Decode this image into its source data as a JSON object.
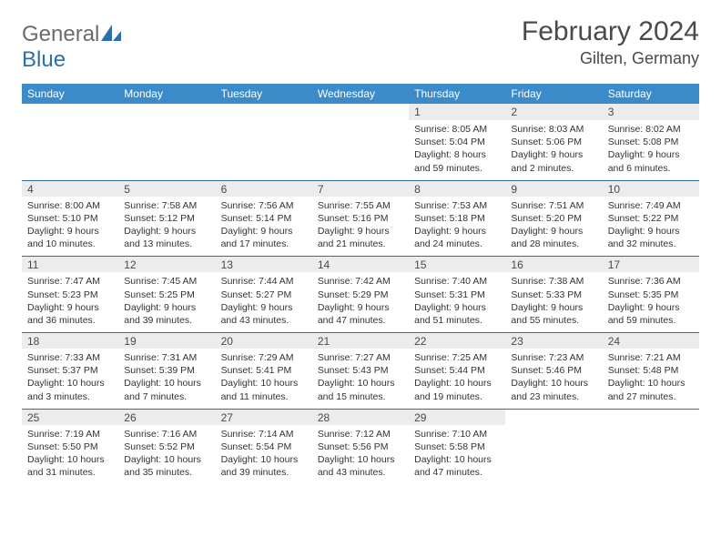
{
  "brand": {
    "left": "General",
    "right": "Blue"
  },
  "title": "February 2024",
  "location": "Gilten, Germany",
  "header_bg": "#3b8bc8",
  "daynum_bg": "#ececec",
  "rule_color": "#2f6fa7",
  "text_color": "#333333",
  "day_labels": [
    "Sunday",
    "Monday",
    "Tuesday",
    "Wednesday",
    "Thursday",
    "Friday",
    "Saturday"
  ],
  "weeks": [
    [
      null,
      null,
      null,
      null,
      {
        "n": "1",
        "sr": "8:05 AM",
        "ss": "5:04 PM",
        "dl": "8 hours and 59 minutes."
      },
      {
        "n": "2",
        "sr": "8:03 AM",
        "ss": "5:06 PM",
        "dl": "9 hours and 2 minutes."
      },
      {
        "n": "3",
        "sr": "8:02 AM",
        "ss": "5:08 PM",
        "dl": "9 hours and 6 minutes."
      }
    ],
    [
      {
        "n": "4",
        "sr": "8:00 AM",
        "ss": "5:10 PM",
        "dl": "9 hours and 10 minutes."
      },
      {
        "n": "5",
        "sr": "7:58 AM",
        "ss": "5:12 PM",
        "dl": "9 hours and 13 minutes."
      },
      {
        "n": "6",
        "sr": "7:56 AM",
        "ss": "5:14 PM",
        "dl": "9 hours and 17 minutes."
      },
      {
        "n": "7",
        "sr": "7:55 AM",
        "ss": "5:16 PM",
        "dl": "9 hours and 21 minutes."
      },
      {
        "n": "8",
        "sr": "7:53 AM",
        "ss": "5:18 PM",
        "dl": "9 hours and 24 minutes."
      },
      {
        "n": "9",
        "sr": "7:51 AM",
        "ss": "5:20 PM",
        "dl": "9 hours and 28 minutes."
      },
      {
        "n": "10",
        "sr": "7:49 AM",
        "ss": "5:22 PM",
        "dl": "9 hours and 32 minutes."
      }
    ],
    [
      {
        "n": "11",
        "sr": "7:47 AM",
        "ss": "5:23 PM",
        "dl": "9 hours and 36 minutes."
      },
      {
        "n": "12",
        "sr": "7:45 AM",
        "ss": "5:25 PM",
        "dl": "9 hours and 39 minutes."
      },
      {
        "n": "13",
        "sr": "7:44 AM",
        "ss": "5:27 PM",
        "dl": "9 hours and 43 minutes."
      },
      {
        "n": "14",
        "sr": "7:42 AM",
        "ss": "5:29 PM",
        "dl": "9 hours and 47 minutes."
      },
      {
        "n": "15",
        "sr": "7:40 AM",
        "ss": "5:31 PM",
        "dl": "9 hours and 51 minutes."
      },
      {
        "n": "16",
        "sr": "7:38 AM",
        "ss": "5:33 PM",
        "dl": "9 hours and 55 minutes."
      },
      {
        "n": "17",
        "sr": "7:36 AM",
        "ss": "5:35 PM",
        "dl": "9 hours and 59 minutes."
      }
    ],
    [
      {
        "n": "18",
        "sr": "7:33 AM",
        "ss": "5:37 PM",
        "dl": "10 hours and 3 minutes."
      },
      {
        "n": "19",
        "sr": "7:31 AM",
        "ss": "5:39 PM",
        "dl": "10 hours and 7 minutes."
      },
      {
        "n": "20",
        "sr": "7:29 AM",
        "ss": "5:41 PM",
        "dl": "10 hours and 11 minutes."
      },
      {
        "n": "21",
        "sr": "7:27 AM",
        "ss": "5:43 PM",
        "dl": "10 hours and 15 minutes."
      },
      {
        "n": "22",
        "sr": "7:25 AM",
        "ss": "5:44 PM",
        "dl": "10 hours and 19 minutes."
      },
      {
        "n": "23",
        "sr": "7:23 AM",
        "ss": "5:46 PM",
        "dl": "10 hours and 23 minutes."
      },
      {
        "n": "24",
        "sr": "7:21 AM",
        "ss": "5:48 PM",
        "dl": "10 hours and 27 minutes."
      }
    ],
    [
      {
        "n": "25",
        "sr": "7:19 AM",
        "ss": "5:50 PM",
        "dl": "10 hours and 31 minutes."
      },
      {
        "n": "26",
        "sr": "7:16 AM",
        "ss": "5:52 PM",
        "dl": "10 hours and 35 minutes."
      },
      {
        "n": "27",
        "sr": "7:14 AM",
        "ss": "5:54 PM",
        "dl": "10 hours and 39 minutes."
      },
      {
        "n": "28",
        "sr": "7:12 AM",
        "ss": "5:56 PM",
        "dl": "10 hours and 43 minutes."
      },
      {
        "n": "29",
        "sr": "7:10 AM",
        "ss": "5:58 PM",
        "dl": "10 hours and 47 minutes."
      },
      null,
      null
    ]
  ],
  "labels": {
    "sunrise": "Sunrise: ",
    "sunset": "Sunset: ",
    "daylight": "Daylight: "
  }
}
